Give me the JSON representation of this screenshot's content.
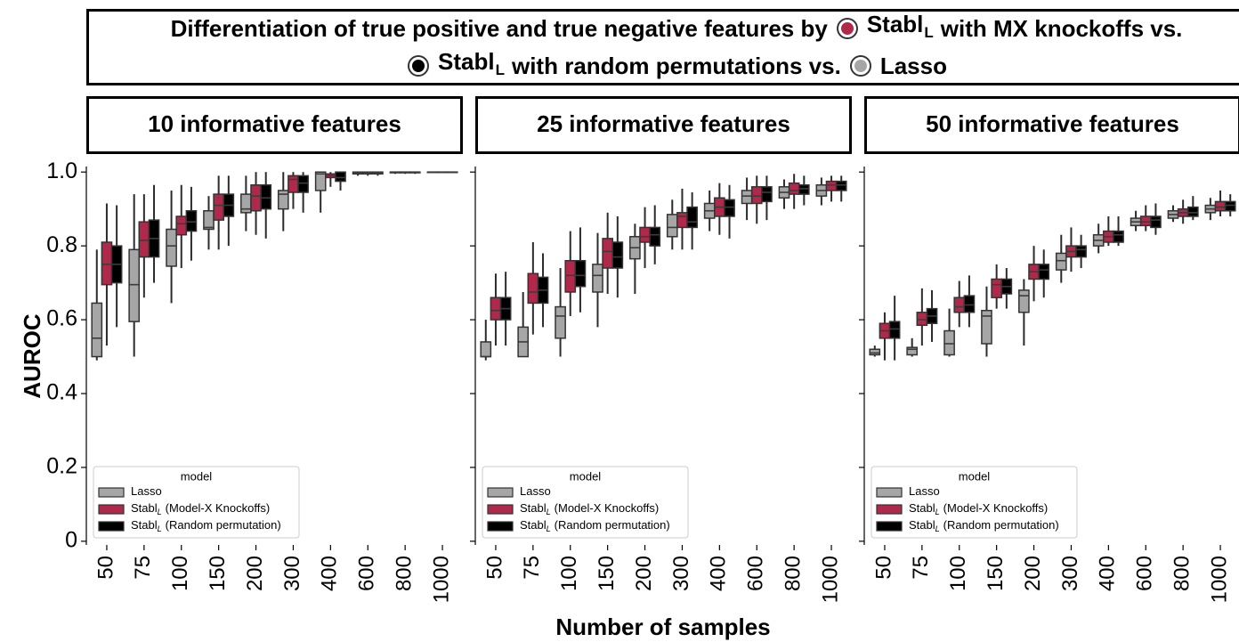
{
  "title": {
    "lead": "Differentiation of true positive and true negative features by",
    "item1": [
      "Stabl",
      "L",
      "with MX knockoffs vs."
    ],
    "item2": [
      "Stabl",
      "L",
      "with random permutations vs."
    ],
    "item3": "Lasso"
  },
  "xlabel": "Number of samples",
  "ylabel": "AUROC",
  "chart_data": [
    {
      "type": "box",
      "title": "10 informative features",
      "categories": [
        "50",
        "75",
        "100",
        "150",
        "200",
        "300",
        "400",
        "600",
        "800",
        "1000"
      ],
      "ylim": [
        -0.01,
        1.015
      ],
      "yticks": [
        0,
        0.2,
        0.4,
        0.6,
        0.8,
        {
          "value": 1,
          "label": "1.0"
        }
      ],
      "ytick_labels": true,
      "grid": false,
      "legend_loc": "lower left",
      "legend_title": "model",
      "series": [
        {
          "name": "Lasso",
          "color": "#a6a6a6",
          "low": [
            0.49,
            0.5,
            0.645,
            0.79,
            0.84,
            0.84,
            0.89,
            0.99,
            0.995,
            1
          ],
          "q1": [
            0.5,
            0.595,
            0.745,
            0.845,
            0.89,
            0.9,
            0.95,
            0.995,
            0.998,
            1
          ],
          "median": [
            0.55,
            0.695,
            0.8,
            0.85,
            0.9,
            0.94,
            0.995,
            0.998,
            1,
            1
          ],
          "q3": [
            0.645,
            0.79,
            0.845,
            0.895,
            0.94,
            0.95,
            1,
            1,
            1,
            1
          ],
          "high": [
            0.79,
            0.94,
            0.95,
            0.935,
            0.99,
            1,
            1,
            1,
            1,
            1
          ]
        },
        {
          "name": "Stabl",
          "subscript": "L",
          "suffix": "(Model-X Knockoffs)",
          "color": "#b0284a",
          "low": [
            0.53,
            0.66,
            0.74,
            0.79,
            0.83,
            0.9,
            0.96,
            0.99,
            0.995,
            1
          ],
          "q1": [
            0.695,
            0.77,
            0.83,
            0.87,
            0.895,
            0.945,
            0.985,
            0.995,
            0.998,
            1
          ],
          "median": [
            0.75,
            0.815,
            0.86,
            0.91,
            0.935,
            0.98,
            0.99,
            0.998,
            1,
            1
          ],
          "q3": [
            0.81,
            0.865,
            0.88,
            0.94,
            0.965,
            0.99,
            0.995,
            1,
            1,
            1
          ],
          "high": [
            0.915,
            0.94,
            0.965,
            0.99,
            1,
            1,
            1,
            1,
            1,
            1
          ]
        },
        {
          "name": "Stabl",
          "subscript": "L",
          "suffix": "(Random permutation)",
          "color": "#000000",
          "low": [
            0.58,
            0.7,
            0.76,
            0.8,
            0.82,
            0.89,
            0.95,
            0.99,
            0.995,
            1
          ],
          "q1": [
            0.7,
            0.77,
            0.84,
            0.88,
            0.9,
            0.945,
            0.975,
            0.995,
            0.998,
            1
          ],
          "median": [
            0.75,
            0.82,
            0.865,
            0.91,
            0.93,
            0.97,
            0.985,
            0.998,
            1,
            1
          ],
          "q3": [
            0.8,
            0.87,
            0.895,
            0.94,
            0.965,
            0.99,
            1,
            1,
            1,
            1
          ],
          "high": [
            0.91,
            0.965,
            0.96,
            0.99,
            1,
            1,
            1,
            1,
            1,
            1
          ]
        }
      ]
    },
    {
      "type": "box",
      "title": "25 informative features",
      "categories": [
        "50",
        "75",
        "100",
        "150",
        "200",
        "300",
        "400",
        "600",
        "800",
        "1000"
      ],
      "ylim": [
        -0.01,
        1.015
      ],
      "yticks": [
        0,
        0.2,
        0.4,
        0.6,
        0.8,
        1
      ],
      "ytick_labels": false,
      "grid": false,
      "legend_loc": "lower left",
      "legend_title": "model",
      "series": [
        {
          "name": "Lasso",
          "color": "#a6a6a6",
          "low": [
            0.49,
            0.5,
            0.5,
            0.58,
            0.67,
            0.79,
            0.84,
            0.87,
            0.9,
            0.91
          ],
          "q1": [
            0.5,
            0.5,
            0.55,
            0.675,
            0.765,
            0.825,
            0.875,
            0.915,
            0.93,
            0.935
          ],
          "median": [
            0.5,
            0.54,
            0.61,
            0.72,
            0.795,
            0.85,
            0.895,
            0.935,
            0.945,
            0.95
          ],
          "q3": [
            0.54,
            0.58,
            0.635,
            0.75,
            0.825,
            0.885,
            0.915,
            0.95,
            0.96,
            0.965
          ],
          "high": [
            0.6,
            0.675,
            0.74,
            0.835,
            0.86,
            0.925,
            0.95,
            0.985,
            0.98,
            0.985
          ]
        },
        {
          "name": "Stabl",
          "subscript": "L",
          "suffix": "(Model-X Knockoffs)",
          "color": "#b0284a",
          "low": [
            0.53,
            0.56,
            0.61,
            0.67,
            0.74,
            0.79,
            0.83,
            0.86,
            0.9,
            0.92
          ],
          "q1": [
            0.6,
            0.645,
            0.675,
            0.74,
            0.81,
            0.85,
            0.88,
            0.915,
            0.94,
            0.95
          ],
          "median": [
            0.625,
            0.675,
            0.72,
            0.785,
            0.825,
            0.88,
            0.905,
            0.935,
            0.95,
            0.965
          ],
          "q3": [
            0.66,
            0.725,
            0.76,
            0.82,
            0.85,
            0.89,
            0.93,
            0.96,
            0.97,
            0.975
          ],
          "high": [
            0.725,
            0.81,
            0.84,
            0.89,
            0.905,
            0.955,
            0.97,
            0.99,
            0.995,
            0.99
          ]
        },
        {
          "name": "Stabl",
          "subscript": "L",
          "suffix": "(Random permutation)",
          "color": "#000000",
          "low": [
            0.53,
            0.58,
            0.62,
            0.66,
            0.75,
            0.79,
            0.82,
            0.87,
            0.91,
            0.92
          ],
          "q1": [
            0.6,
            0.645,
            0.69,
            0.74,
            0.8,
            0.85,
            0.88,
            0.92,
            0.94,
            0.95
          ],
          "median": [
            0.63,
            0.68,
            0.72,
            0.77,
            0.83,
            0.865,
            0.905,
            0.945,
            0.955,
            0.965
          ],
          "q3": [
            0.66,
            0.715,
            0.76,
            0.81,
            0.85,
            0.905,
            0.925,
            0.96,
            0.965,
            0.975
          ],
          "high": [
            0.73,
            0.78,
            0.85,
            0.88,
            0.91,
            0.945,
            0.965,
            0.99,
            0.99,
            0.99
          ]
        }
      ]
    },
    {
      "type": "box",
      "title": "50 informative features",
      "categories": [
        "50",
        "75",
        "100",
        "150",
        "200",
        "300",
        "400",
        "600",
        "800",
        "1000"
      ],
      "ylim": [
        -0.01,
        1.015
      ],
      "yticks": [
        0,
        0.2,
        0.4,
        0.6,
        0.8,
        1
      ],
      "ytick_labels": false,
      "grid": false,
      "legend_loc": "lower left",
      "legend_title": "model",
      "series": [
        {
          "name": "Lasso",
          "color": "#a6a6a6",
          "low": [
            0.5,
            0.5,
            0.5,
            0.5,
            0.53,
            0.7,
            0.78,
            0.84,
            0.865,
            0.87
          ],
          "q1": [
            0.505,
            0.505,
            0.505,
            0.535,
            0.62,
            0.735,
            0.8,
            0.855,
            0.875,
            0.89
          ],
          "median": [
            0.51,
            0.52,
            0.535,
            0.61,
            0.665,
            0.76,
            0.815,
            0.865,
            0.885,
            0.9
          ],
          "q3": [
            0.52,
            0.525,
            0.57,
            0.625,
            0.68,
            0.78,
            0.83,
            0.875,
            0.895,
            0.91
          ],
          "high": [
            0.53,
            0.55,
            0.63,
            0.69,
            0.71,
            0.83,
            0.86,
            0.895,
            0.91,
            0.93
          ]
        },
        {
          "name": "Stabl",
          "subscript": "L",
          "suffix": "(Model-X Knockoffs)",
          "color": "#b0284a",
          "low": [
            0.49,
            0.53,
            0.58,
            0.63,
            0.65,
            0.73,
            0.8,
            0.84,
            0.86,
            0.88
          ],
          "q1": [
            0.55,
            0.585,
            0.62,
            0.66,
            0.71,
            0.77,
            0.81,
            0.855,
            0.88,
            0.895
          ],
          "median": [
            0.57,
            0.6,
            0.635,
            0.695,
            0.73,
            0.785,
            0.825,
            0.865,
            0.89,
            0.905
          ],
          "q3": [
            0.59,
            0.62,
            0.66,
            0.71,
            0.75,
            0.8,
            0.84,
            0.88,
            0.9,
            0.92
          ],
          "high": [
            0.62,
            0.685,
            0.705,
            0.75,
            0.8,
            0.85,
            0.88,
            0.91,
            0.925,
            0.95
          ]
        },
        {
          "name": "Stabl",
          "subscript": "L",
          "suffix": "(Random permutation)",
          "color": "#000000",
          "low": [
            0.49,
            0.54,
            0.58,
            0.63,
            0.66,
            0.74,
            0.8,
            0.83,
            0.87,
            0.88
          ],
          "q1": [
            0.55,
            0.59,
            0.62,
            0.67,
            0.71,
            0.77,
            0.81,
            0.85,
            0.88,
            0.895
          ],
          "median": [
            0.575,
            0.61,
            0.64,
            0.69,
            0.735,
            0.79,
            0.83,
            0.87,
            0.89,
            0.91
          ],
          "q3": [
            0.595,
            0.63,
            0.665,
            0.71,
            0.75,
            0.8,
            0.84,
            0.88,
            0.905,
            0.92
          ],
          "high": [
            0.665,
            0.68,
            0.72,
            0.74,
            0.79,
            0.83,
            0.88,
            0.915,
            0.935,
            0.94
          ]
        }
      ]
    }
  ]
}
